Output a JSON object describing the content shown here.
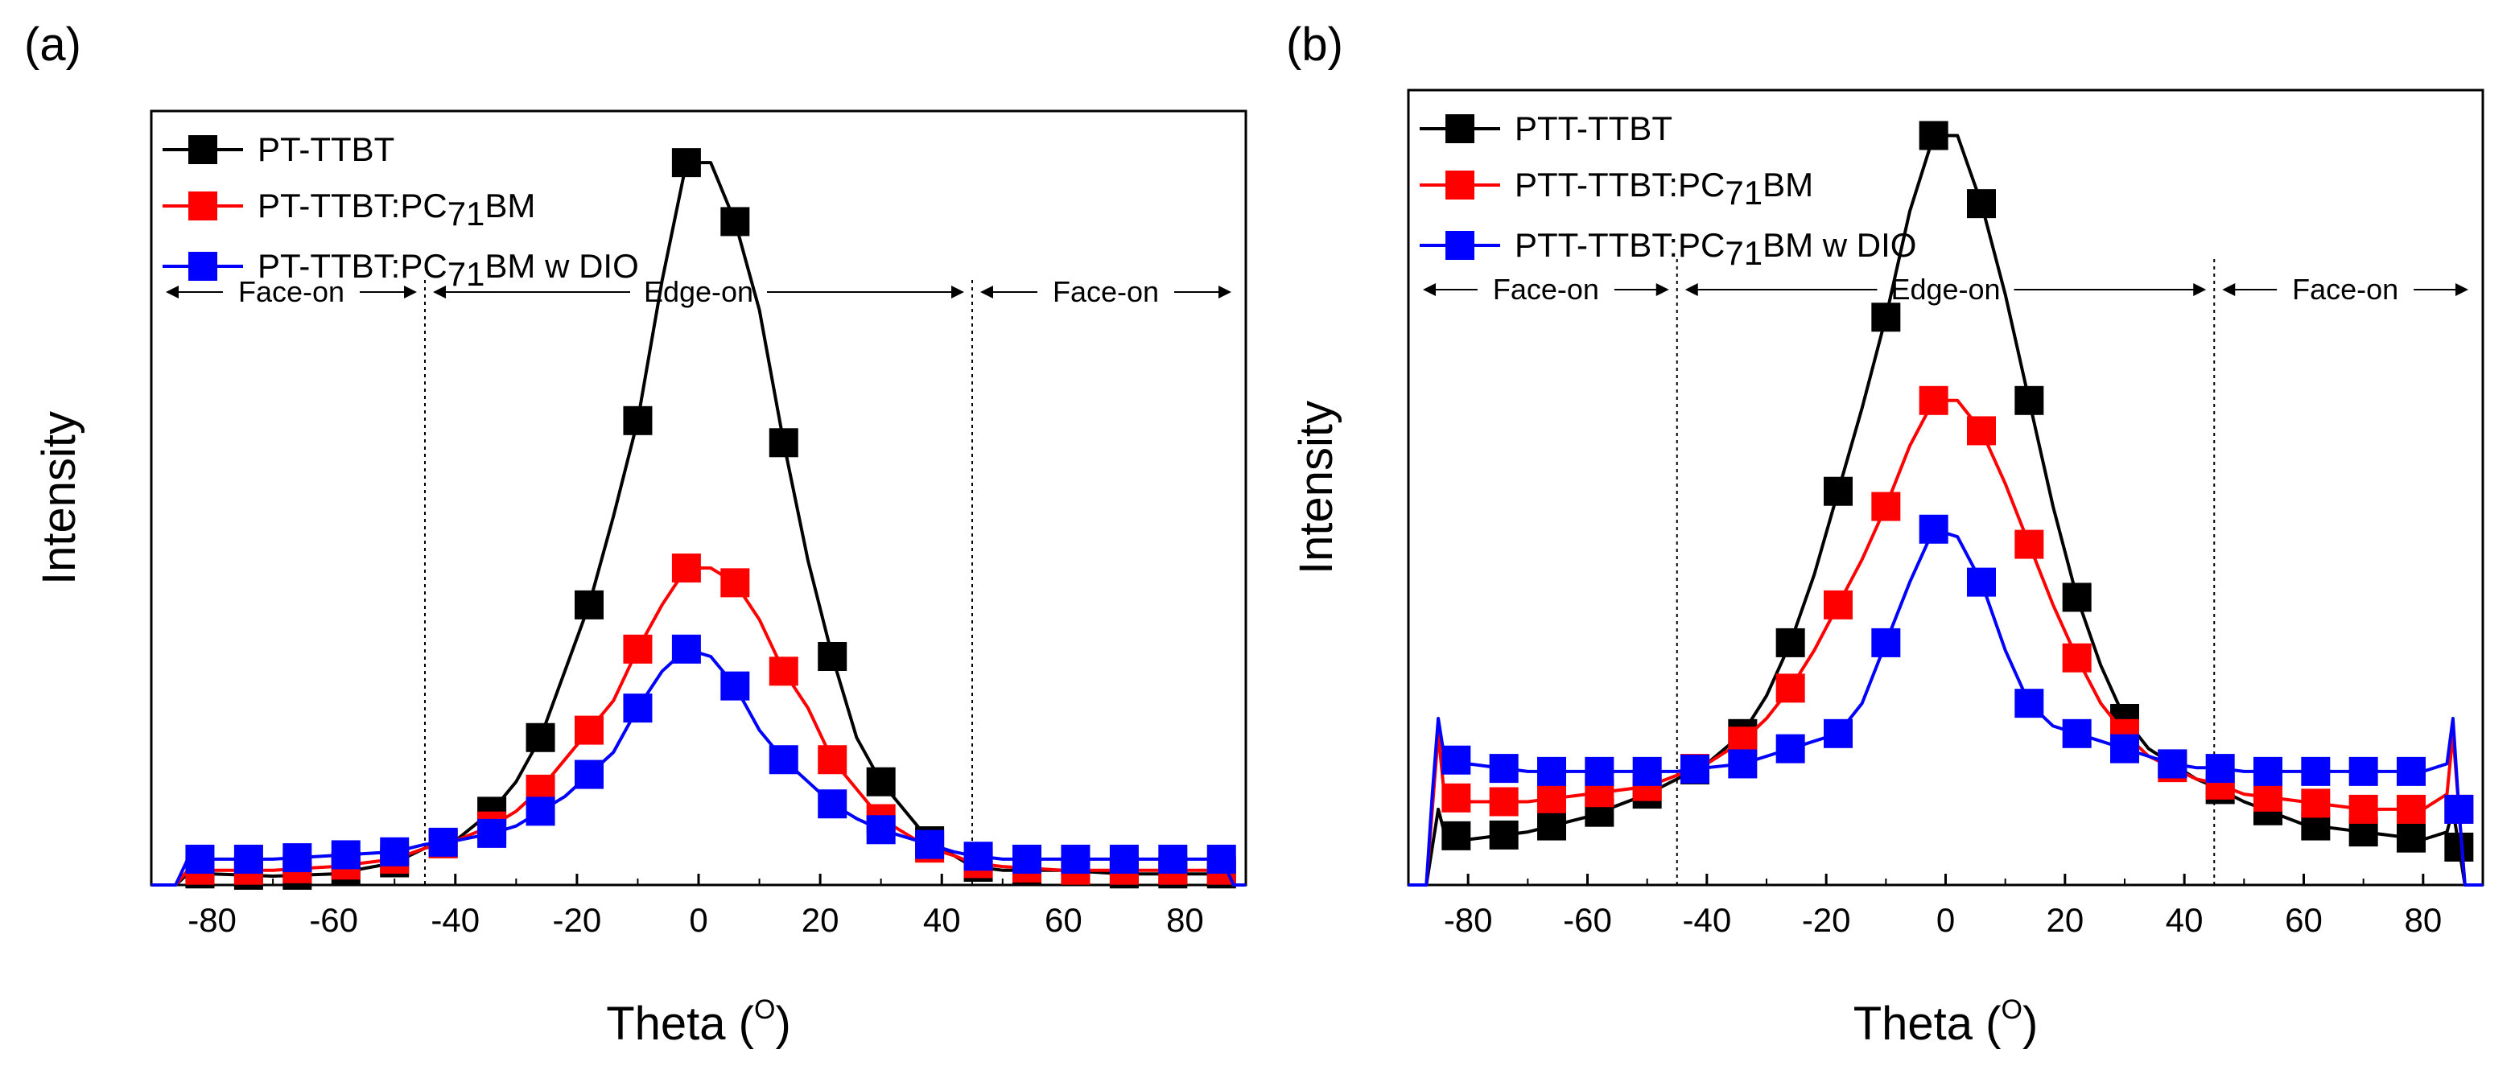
{
  "figure": {
    "panels": [
      "(a)",
      "(b)"
    ]
  },
  "chart_data": [
    {
      "type": "line",
      "panel_label": "(a)",
      "xlabel": "Theta",
      "xlabel_unit": "O",
      "ylabel": "Intensity",
      "xlim": [
        -90,
        90
      ],
      "ylim": [
        0,
        1.05
      ],
      "xticks": [
        -80,
        -60,
        -40,
        -20,
        0,
        20,
        40,
        60,
        80
      ],
      "legend_position": "top-left",
      "regions": {
        "face_on_left": "Face-on",
        "edge_on": "Edge-on",
        "face_on_right": "Face-on",
        "boundaries": [
          -45,
          45
        ]
      },
      "marker_x": [
        -82,
        -74,
        -66,
        -58,
        -50,
        -42,
        -34,
        -26,
        -18,
        -10,
        -2,
        6,
        14,
        22,
        30,
        38,
        46,
        54,
        62,
        70,
        78,
        86
      ],
      "series": [
        {
          "name": "PT-TTBT",
          "name_main": "PT-TTBT",
          "name_sub": "",
          "name_tail": "",
          "color": "#000000",
          "x": [
            -90,
            -86,
            -84,
            -80,
            -70,
            -60,
            -50,
            -45,
            -40,
            -34,
            -30,
            -26,
            -22,
            -18,
            -14,
            -10,
            -6,
            -2,
            2,
            6,
            10,
            14,
            18,
            22,
            26,
            30,
            34,
            38,
            42,
            45,
            50,
            60,
            70,
            80,
            86,
            88,
            90
          ],
          "y": [
            0.0,
            0.0,
            0.015,
            0.015,
            0.012,
            0.015,
            0.03,
            0.05,
            0.06,
            0.1,
            0.14,
            0.2,
            0.29,
            0.38,
            0.5,
            0.63,
            0.82,
            0.98,
            0.98,
            0.9,
            0.78,
            0.6,
            0.44,
            0.31,
            0.2,
            0.14,
            0.1,
            0.06,
            0.04,
            0.025,
            0.02,
            0.02,
            0.015,
            0.015,
            0.015,
            0.0,
            0.0
          ]
        },
        {
          "name": "PT-TTBT:PC71BM",
          "name_main": "PT-TTBT:PC",
          "name_sub": "71",
          "name_tail": "BM",
          "color": "#ff0000",
          "x": [
            -90,
            -86,
            -84,
            -80,
            -70,
            -60,
            -50,
            -45,
            -40,
            -34,
            -30,
            -26,
            -22,
            -18,
            -14,
            -10,
            -6,
            -2,
            2,
            6,
            10,
            14,
            18,
            22,
            26,
            30,
            34,
            38,
            42,
            45,
            50,
            60,
            70,
            80,
            86,
            88,
            90
          ],
          "y": [
            0.0,
            0.0,
            0.02,
            0.02,
            0.02,
            0.025,
            0.035,
            0.05,
            0.06,
            0.08,
            0.1,
            0.13,
            0.17,
            0.21,
            0.25,
            0.32,
            0.38,
            0.43,
            0.43,
            0.41,
            0.36,
            0.29,
            0.24,
            0.17,
            0.13,
            0.09,
            0.07,
            0.05,
            0.04,
            0.03,
            0.025,
            0.02,
            0.02,
            0.02,
            0.02,
            0.0,
            0.0
          ]
        },
        {
          "name": "PT-TTBT:PC71BM w DIO",
          "name_main": "PT-TTBT:PC",
          "name_sub": "71",
          "name_tail": "BM w DIO",
          "color": "#0000ff",
          "x": [
            -90,
            -86,
            -84,
            -80,
            -70,
            -60,
            -50,
            -45,
            -40,
            -34,
            -30,
            -26,
            -22,
            -18,
            -14,
            -10,
            -6,
            -2,
            2,
            6,
            10,
            14,
            18,
            22,
            26,
            30,
            34,
            38,
            42,
            45,
            50,
            60,
            70,
            80,
            86,
            88,
            90
          ],
          "y": [
            0.0,
            0.0,
            0.035,
            0.035,
            0.035,
            0.04,
            0.045,
            0.055,
            0.06,
            0.07,
            0.08,
            0.1,
            0.12,
            0.15,
            0.18,
            0.24,
            0.29,
            0.32,
            0.31,
            0.27,
            0.21,
            0.17,
            0.14,
            0.11,
            0.09,
            0.075,
            0.065,
            0.055,
            0.045,
            0.04,
            0.035,
            0.035,
            0.035,
            0.035,
            0.035,
            0.0,
            0.0
          ]
        }
      ]
    },
    {
      "type": "line",
      "panel_label": "(b)",
      "xlabel": "Theta",
      "xlabel_unit": "O",
      "ylabel": "Intensity",
      "xlim": [
        -90,
        90
      ],
      "ylim": [
        0,
        1.05
      ],
      "xticks": [
        -80,
        -60,
        -40,
        -20,
        0,
        20,
        40,
        60,
        80
      ],
      "legend_position": "top-left",
      "regions": {
        "face_on_left": "Face-on",
        "edge_on": "Edge-on",
        "face_on_right": "Face-on",
        "boundaries": [
          -45,
          45
        ]
      },
      "marker_x": [
        -82,
        -74,
        -66,
        -58,
        -50,
        -42,
        -34,
        -26,
        -18,
        -10,
        -2,
        6,
        14,
        22,
        30,
        38,
        46,
        54,
        62,
        70,
        78,
        86
      ],
      "series": [
        {
          "name": "PTT-TTBT",
          "name_main": "PTT-TTBT",
          "name_sub": "",
          "name_tail": "",
          "color": "#000000",
          "x": [
            -90,
            -87,
            -86,
            -85,
            -84,
            -80,
            -70,
            -60,
            -50,
            -45,
            -40,
            -34,
            -30,
            -26,
            -22,
            -18,
            -14,
            -10,
            -6,
            -2,
            2,
            6,
            10,
            14,
            18,
            22,
            26,
            30,
            34,
            38,
            42,
            45,
            50,
            60,
            70,
            80,
            84,
            85,
            86,
            87,
            88,
            90
          ],
          "y": [
            0.0,
            0.0,
            0.05,
            0.1,
            0.07,
            0.06,
            0.07,
            0.09,
            0.12,
            0.14,
            0.16,
            0.2,
            0.25,
            0.32,
            0.41,
            0.52,
            0.63,
            0.75,
            0.89,
            0.99,
            0.99,
            0.9,
            0.78,
            0.64,
            0.5,
            0.38,
            0.29,
            0.22,
            0.18,
            0.16,
            0.14,
            0.13,
            0.11,
            0.08,
            0.07,
            0.06,
            0.07,
            0.1,
            0.05,
            0.0,
            0.0,
            0.0
          ]
        },
        {
          "name": "PTT-TTBT:PC71BM",
          "name_main": "PTT-TTBT:PC",
          "name_sub": "71",
          "name_tail": "BM",
          "color": "#ff0000",
          "x": [
            -90,
            -87,
            -86,
            -85,
            -84,
            -80,
            -70,
            -60,
            -50,
            -45,
            -40,
            -34,
            -30,
            -26,
            -22,
            -18,
            -14,
            -10,
            -6,
            -2,
            2,
            6,
            10,
            14,
            18,
            22,
            26,
            30,
            34,
            38,
            42,
            45,
            50,
            60,
            70,
            80,
            84,
            85,
            86,
            87,
            88,
            90
          ],
          "y": [
            0.0,
            0.0,
            0.1,
            0.2,
            0.12,
            0.11,
            0.11,
            0.12,
            0.13,
            0.145,
            0.16,
            0.19,
            0.22,
            0.26,
            0.31,
            0.37,
            0.43,
            0.5,
            0.58,
            0.64,
            0.64,
            0.6,
            0.53,
            0.45,
            0.37,
            0.3,
            0.24,
            0.2,
            0.17,
            0.155,
            0.14,
            0.135,
            0.12,
            0.11,
            0.1,
            0.1,
            0.12,
            0.2,
            0.1,
            0.0,
            0.0,
            0.0
          ]
        },
        {
          "name": "PTT-TTBT:PC71BM w DIO",
          "name_main": "PTT-TTBT:PC",
          "name_sub": "71",
          "name_tail": "BM w DIO",
          "color": "#0000ff",
          "x": [
            -90,
            -87,
            -86,
            -85,
            -84,
            -80,
            -70,
            -60,
            -50,
            -45,
            -40,
            -34,
            -30,
            -26,
            -22,
            -18,
            -14,
            -10,
            -6,
            -2,
            2,
            6,
            10,
            14,
            18,
            22,
            26,
            30,
            34,
            38,
            42,
            45,
            50,
            60,
            70,
            80,
            84,
            85,
            86,
            87,
            88,
            90
          ],
          "y": [
            0.0,
            0.0,
            0.12,
            0.22,
            0.17,
            0.16,
            0.15,
            0.15,
            0.15,
            0.15,
            0.155,
            0.16,
            0.17,
            0.18,
            0.19,
            0.2,
            0.24,
            0.32,
            0.4,
            0.47,
            0.46,
            0.4,
            0.31,
            0.24,
            0.21,
            0.2,
            0.19,
            0.18,
            0.17,
            0.16,
            0.155,
            0.155,
            0.15,
            0.15,
            0.15,
            0.15,
            0.16,
            0.22,
            0.1,
            0.0,
            0.0,
            0.0
          ]
        }
      ]
    }
  ]
}
